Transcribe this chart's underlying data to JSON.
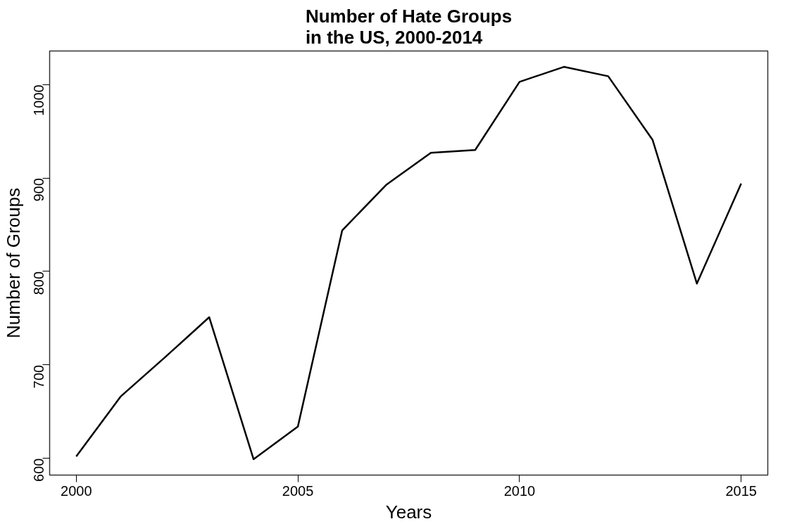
{
  "chart_data": {
    "type": "line",
    "title": "Number of Hate Groups\nin the US, 2000-2014",
    "xlabel": "Years",
    "ylabel": "Number of Groups",
    "x": [
      2000,
      2001,
      2002,
      2003,
      2004,
      2005,
      2006,
      2007,
      2008,
      2009,
      2010,
      2011,
      2012,
      2013,
      2014,
      2015
    ],
    "series": [
      {
        "color": "#000000",
        "values": [
          602,
          666,
          708,
          751,
          599,
          634,
          844,
          893,
          927,
          930,
          1003,
          1019,
          1009,
          941,
          787,
          894
        ]
      }
    ],
    "xlim": [
      1999.4,
      2015.6
    ],
    "ylim": [
      582,
      1036
    ],
    "xticks": [
      2000,
      2005,
      2010,
      2015
    ],
    "yticks": [
      600,
      700,
      800,
      900,
      1000
    ],
    "grid": false,
    "marker": "none",
    "line_style": "solid"
  }
}
